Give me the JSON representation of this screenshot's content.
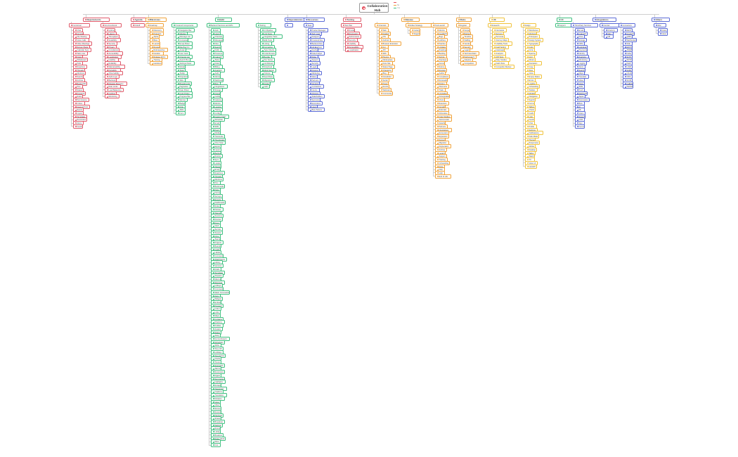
{
  "root": {
    "title": "Collaboration Hub"
  },
  "legend": [
    {
      "label": "",
      "color": "#e54d5b"
    },
    {
      "label": "No",
      "color": "#f0a33b"
    },
    {
      "label": "Yes",
      "color": "#3fbf7f"
    }
  ],
  "categories": [
    {
      "name": "Requirements",
      "color": "#e05a6a",
      "groups": [
        {
          "name": "Functional",
          "items": [
            "Chat",
            "Groups",
            "File Sharing",
            "Voice Calls",
            "Video Meetings",
            "Screen Share",
            "Calendar Sync",
            "Task Lists",
            "Notes",
            "Whiteboard",
            "Polls",
            "Reactions",
            "Threads",
            "Mentions",
            "Search",
            "Archive",
            "Bookmarks",
            "Pins",
            "Status",
            "Presence",
            "Roles",
            "Permissions",
            "Invites",
            "Guest Access",
            "Export",
            "Import",
            "Templates",
            "Reminders",
            "Alerts",
            "Feeds"
          ]
        },
        {
          "name": "Non-Functional",
          "items": [
            "Uptime",
            "Latency",
            "Throughput",
            "Scalability",
            "Security",
            "Privacy",
            "Compliance",
            "Accessibility",
            "Localization",
            "Usability",
            "Reliability",
            "Maintainability",
            "Portability",
            "Observability",
            "Audit Logs",
            "Backups",
            "Disaster Recovery",
            "Rate Limits",
            "Load Balancing",
            "Caching",
            "Monitoring"
          ]
        }
      ]
    },
    {
      "name": "Agenda",
      "color": "#e05a6a",
      "groups": [
        {
          "name": "Kickoff",
          "items": []
        }
      ]
    },
    {
      "name": "Milestones",
      "color": "#f0a33b",
      "groups": [
        {
          "name": "Roadmap",
          "items": [
            "Discovery",
            "Prototype",
            "Alpha",
            "Beta",
            "Launch",
            "Review",
            "Retrospective",
            "Iteration",
            "Release Notes",
            "Training",
            "Handover"
          ]
        }
      ]
    },
    {
      "name": "Build",
      "color": "#3fbf7f",
      "groups": [
        {
          "name": "Frontend Components",
          "items": [
            "Navigation Bar",
            "Sidebar",
            "Message List",
            "Composer",
            "Emoji Picker",
            "File Preview",
            "Avatar",
            "User Card",
            "Channel List",
            "Search Box",
            "Settings Panel",
            "Modal",
            "Toast",
            "Tooltip",
            "Dropdown",
            "Tabs",
            "Breadcrumbs",
            "Pagination",
            "Date Picker",
            "Color Picker",
            "Progress Bar",
            "Spinner",
            "Badge",
            "Chip",
            "Table",
            "Form"
          ]
        },
        {
          "name": "Backend Services and APIs",
          "items": [
            "Auth",
            "Users",
            "Channels",
            "Messages",
            "Files",
            "Search",
            "Notify",
            "Presence",
            "Calendar",
            "Tasks",
            "Notes",
            "Billing",
            "Analytics",
            "Audit",
            "Admin",
            "Webhooks",
            "Bots",
            "Integrations",
            "Storage",
            "Queue",
            "Cache",
            "Gateway",
            "Metrics",
            "Logging",
            "Tracing",
            "Config",
            "Feature Flags",
            "Scheduler",
            "Email",
            "SMS",
            "Push",
            "Media",
            "Transcode",
            "Thumbnails",
            "Virus Scan",
            "Export",
            "Import",
            "Backup",
            "Restore",
            "Sync",
            "Locale",
            "Themes",
            "Emoji",
            "Reactions",
            "Threads",
            "Mentions",
            "Pins",
            "Bookmarks",
            "Polls",
            "Forms",
            "Surveys",
            "Reports",
            "Dashboards",
            "Roles",
            "Policies",
            "Tokens",
            "Sessions",
            "Devices",
            "Keys",
            "Vault",
            "Secrets",
            "Tenants",
            "Orgs",
            "Teams",
            "Projects",
            "Boards",
            "Cards",
            "Labels",
            "Comments",
            "Attachments",
            "History",
            "Versions",
            "Drafts",
            "Templates",
            "Snippets",
            "Macros",
            "Shortcuts",
            "Hotkeys",
            "Commands",
            "Slash Commands",
            "Apps",
            "Widgets",
            "Embeds",
            "Previews",
            "Unfurl",
            "Links",
            "Maps",
            "Contacts",
            "Directory",
            "Profiles",
            "Avatars",
            "Status",
            "Away",
            "Do Not Disturb",
            "Schedules",
            "Shifts",
            "Time Off",
            "Holidays",
            "Time Zones",
            "Clocks",
            "Timers",
            "Stopwatch",
            "Alarms",
            "Reminders",
            "Digest",
            "Summaries",
            "Highlights",
            "Recaps",
            "Transcripts",
            "Captions",
            "Translation",
            "Dictation",
            "Voice",
            "Video",
            "Screen",
            "Record",
            "Playback",
            "Stream",
            "Broadcast",
            "Webinar",
            "Rooms",
            "Lobby",
            "Breakout",
            "Raise Hand",
            "Mute",
            "Kick"
          ]
        },
        {
          "name": "Tooling",
          "items": [
            "CI Pipeline",
            "Unit Tests",
            "Integration Tests",
            "E2E Tests",
            "Linting",
            "Formatting",
            "Type Checks",
            "Code Review",
            "Bundler",
            "Dev Server",
            "Hot Reload",
            "Storybook",
            "Mock Server",
            "Fixtures",
            "Seed Data",
            "Migrations",
            "Docker",
            "Helm"
          ]
        }
      ]
    },
    {
      "name": "Dependencies",
      "color": "#5b6bd6",
      "groups": [
        {
          "name": "",
          "items": []
        }
      ]
    },
    {
      "name": "Resources",
      "color": "#5b6bd6",
      "groups": [
        {
          "name": "Team",
          "items": [
            "Product Manager",
            "Tech Lead",
            "Designer",
            "Frontend Dev",
            "Backend Dev",
            "QA Engineer",
            "DevOps",
            "Data Analyst",
            "Writer",
            "Support",
            "Security",
            "Legal",
            "Finance",
            "Marketing",
            "Sales",
            "Partners",
            "Vendors",
            "Contractors",
            "Interns",
            "Advisors",
            "Stakeholders",
            "Sponsors",
            "Executives",
            "Users",
            "Beta Testers"
          ]
        }
      ]
    },
    {
      "name": "Testing",
      "color": "#e05a6a",
      "groups": [
        {
          "name": "Test Plan",
          "items": [
            "Smoke",
            "Regression",
            "Performance",
            "Security",
            "Usability",
            "Accessibility",
            "Localization"
          ]
        }
      ]
    },
    {
      "name": "Release",
      "color": "#f0a33b",
      "groups": [
        {
          "name": "Channels",
          "items": [
            "Web",
            "Desktop",
            "iOS",
            "Android",
            "Browser Extension",
            "CLI",
            "API",
            "SDK",
            "Plugins",
            "Marketplace",
            "Docs Site",
            "Status Page",
            "Changelog",
            "Blog",
            "Newsletter",
            "Social",
            "Press",
            "Events",
            "Webinars",
            "Community"
          ]
        },
        {
          "name": "Rollout Strategy",
          "items": [
            "Canary",
            "Staged"
          ]
        },
        {
          "name": "Post-Launch",
          "items": [
            "Metrics",
            "Feedback",
            "Bugs",
            "Hotfixes",
            "Patches",
            "Updates",
            "Roadmap",
            "Backlog",
            "Sprints",
            "Standups",
            "Demos",
            "Retros",
            "Reviews",
            "Audits",
            "Compliance",
            "Renewals",
            "Pricing",
            "Discounts",
            "Trials",
            "Upgrades",
            "Downgrades",
            "Churn",
            "Retention",
            "Growth",
            "Referrals",
            "Advocates",
            "Case Studies",
            "Testimonials",
            "Awards",
            "Partners",
            "Integrations",
            "Ecosystem",
            "Expansion",
            "Sunset",
            "Migration",
            "Deprecation",
            "Archive",
            "Legacy",
            "Support",
            "Training",
            "Onboarding",
            "Docs",
            "FAQ",
            "Help",
            "End of Life"
          ]
        }
      ]
    },
    {
      "name": "Risks",
      "color": "#f0a33b",
      "groups": [
        {
          "name": "Register",
          "items": [
            "Scope",
            "Budget",
            "Timeline",
            "Staffing",
            "Vendor",
            "Security",
            "Legal",
            "Technical Debt",
            "Performance",
            "Adoption",
            "Competition"
          ]
        }
      ]
    },
    {
      "name": "UX",
      "color": "#f0c23b",
      "groups": [
        {
          "name": "Research",
          "items": [
            "Interviews",
            "Surveys",
            "Personas",
            "Journey Maps",
            "Usability Tests",
            "Card Sorting",
            "Heatmaps",
            "Analytics",
            "A/B Tests",
            "Diary Studies",
            "Field Visits",
            "Competitor Review"
          ]
        },
        {
          "name": "Design",
          "items": [
            "Wireframes",
            "Mockups",
            "Prototypes",
            "Design System",
            "Typography",
            "Color",
            "Icons",
            "Spacing",
            "Grid",
            "Motion",
            "Illustration",
            "Copy",
            "Tone",
            "Voice",
            "Empty States",
            "Errors",
            "Loading",
            "Onboarding",
            "Tooltips",
            "Modals",
            "Navigation",
            "Search",
            "Forms",
            "Tables",
            "Charts",
            "Cards",
            "Lists",
            "Feeds",
            "Chat",
            "Profile",
            "Settings",
            "Notifications",
            "Dark Mode",
            "Themes",
            "Responsive",
            "Mobile",
            "Desktop",
            "Tablet",
            "Watch",
            "TV",
            "Voice UI",
            "Handoff"
          ]
        }
      ]
    },
    {
      "name": "CX",
      "color": "#3fbf7f",
      "groups": [
        {
          "name": "Support",
          "items": []
        }
      ]
    },
    {
      "name": "Integrations",
      "color": "#5b6bd6",
      "groups": [
        {
          "name": "Third-Party Services",
          "items": [
            "Email",
            "Calendar",
            "Drive",
            "Storage",
            "CRM",
            "Helpdesk",
            "Payments",
            "Identity",
            "Analytics",
            "Monitoring",
            "Logging",
            "Alerts",
            "Search",
            "Maps",
            "Translate",
            "Video",
            "Voice",
            "SMS",
            "Push",
            "Webhooks",
            "Zapier",
            "Automation",
            "Bots",
            "AI",
            "ML",
            "Vision",
            "Speech",
            "OCR",
            "Sign",
            "Forms"
          ]
        },
        {
          "name": "Internal",
          "items": [
            "Directory",
            "Wiki",
            "HR"
          ]
        },
        {
          "name": "Connectors",
          "items": [
            "REST",
            "GraphQL",
            "gRPC",
            "WebSocket",
            "SSE",
            "MQTT",
            "AMQP",
            "Kafka",
            "SFTP",
            "SMTP",
            "IMAP",
            "LDAP",
            "SAML",
            "OAuth",
            "OIDC",
            "SCIM",
            "CalDAV",
            "WebDAV"
          ]
        }
      ]
    },
    {
      "name": "Others",
      "color": "#5b6bd6",
      "groups": [
        {
          "name": "Misc",
          "items": [
            "Notes",
            "Ideas"
          ]
        }
      ]
    }
  ]
}
